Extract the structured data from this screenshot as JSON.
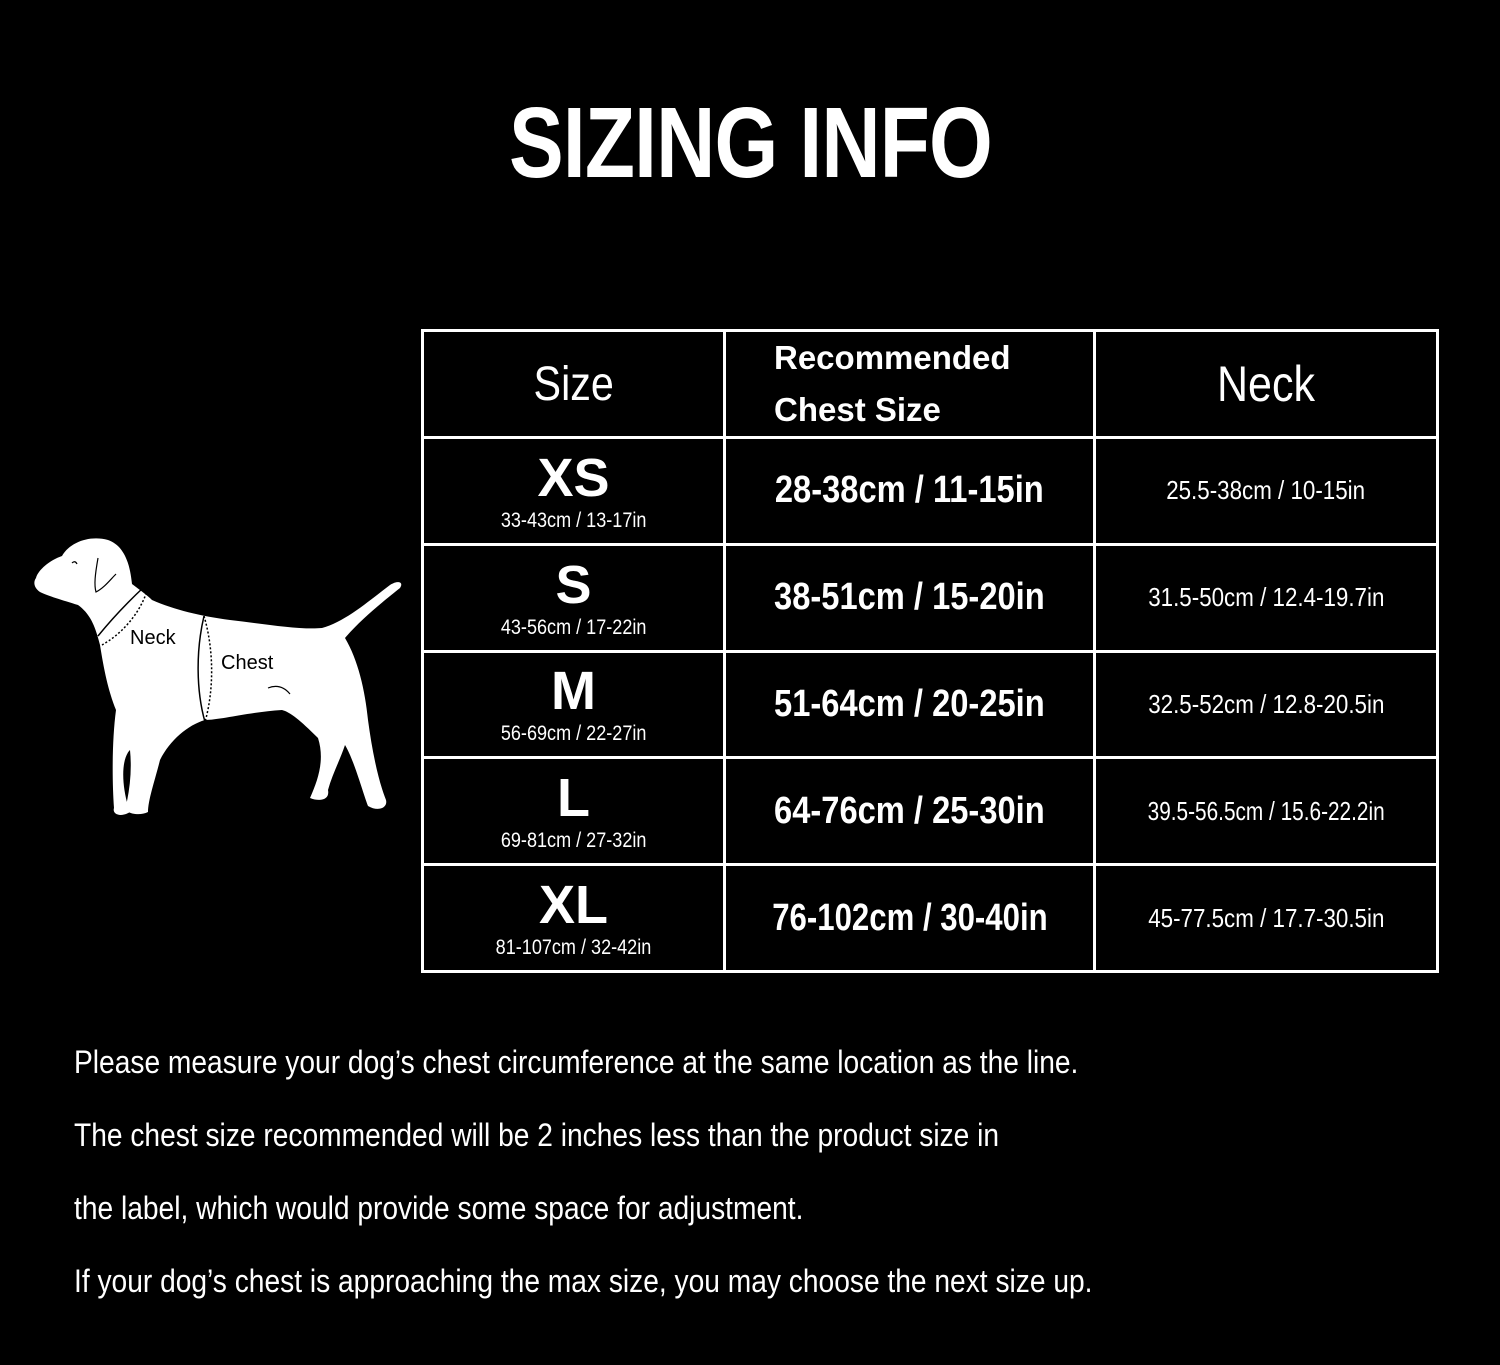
{
  "title": "SIZING INFO",
  "diagram": {
    "neck_label": "Neck",
    "chest_label": "Chest"
  },
  "table": {
    "headers": {
      "size": "Size",
      "chest_line1": "Recommended",
      "chest_line2": "Chest Size",
      "neck": "Neck"
    },
    "rows": [
      {
        "size": "XS",
        "product_size": "33-43cm / 13-17in",
        "chest": "28-38cm / 11-15in",
        "neck": "25.5-38cm / 10-15in"
      },
      {
        "size": "S",
        "product_size": "43-56cm / 17-22in",
        "chest": "38-51cm / 15-20in",
        "neck": "31.5-50cm / 12.4-19.7in"
      },
      {
        "size": "M",
        "product_size": "56-69cm / 22-27in",
        "chest": "51-64cm / 20-25in",
        "neck": "32.5-52cm / 12.8-20.5in"
      },
      {
        "size": "L",
        "product_size": "69-81cm / 27-32in",
        "chest": "64-76cm / 25-30in",
        "neck": "39.5-56.5cm / 15.6-22.2in"
      },
      {
        "size": "XL",
        "product_size": "81-107cm / 32-42in",
        "chest": "76-102cm / 30-40in",
        "neck": "45-77.5cm / 17.7-30.5in"
      }
    ]
  },
  "notes": [
    "Please measure your dog’s chest circumference at the same location as the line.",
    "The chest size recommended will be 2 inches less than the product size in",
    "the label, which would provide some space for adjustment.",
    "If your dog’s chest is approaching the max size, you may choose the next size up."
  ]
}
